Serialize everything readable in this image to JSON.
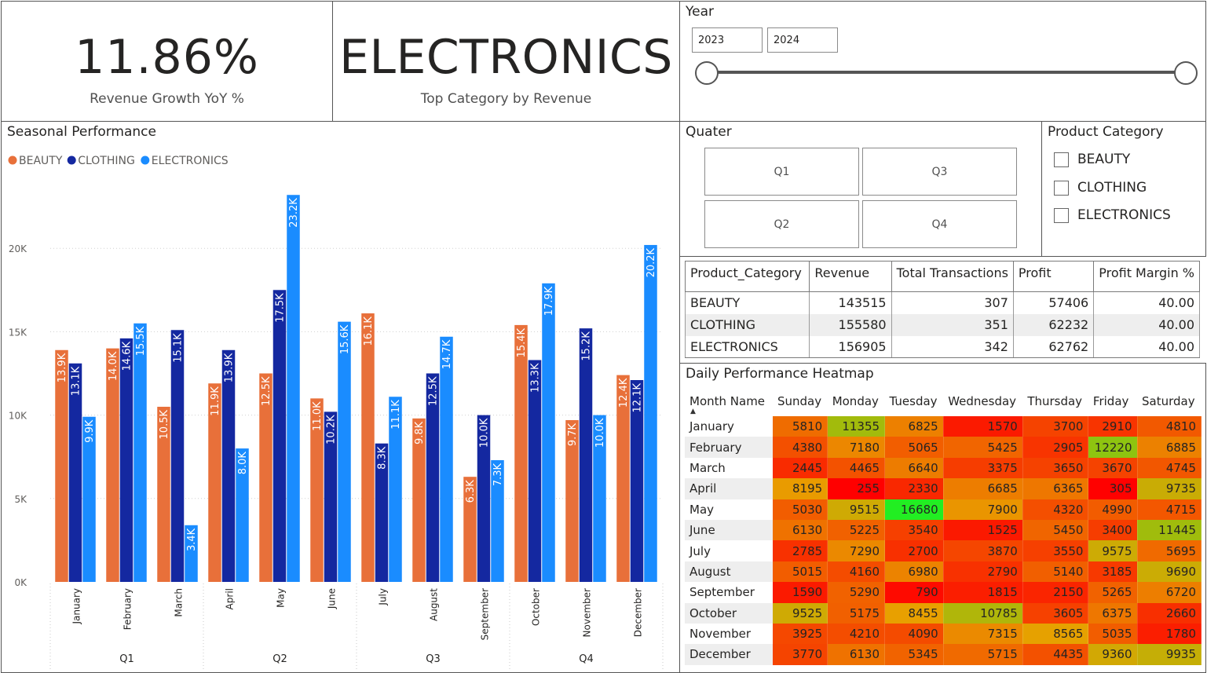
{
  "kpi_growth": {
    "value": "11.86%",
    "label": "Revenue Growth YoY %"
  },
  "kpi_top_category": {
    "value": "ELECTRONICS",
    "label": "Top Category by Revenue"
  },
  "year_slicer": {
    "title": "Year",
    "start": "2023",
    "end": "2024"
  },
  "quarter_slicer": {
    "title": "Quater",
    "options": [
      "Q1",
      "Q3",
      "Q2",
      "Q4"
    ]
  },
  "category_slicer": {
    "title": "Product Category",
    "options": [
      "BEAUTY",
      "CLOTHING",
      "ELECTRONICS"
    ]
  },
  "summary_table": {
    "columns": [
      "Product_Category",
      "Revenue",
      "Total Transactions",
      "Profit",
      "Profit Margin %"
    ],
    "rows": [
      [
        "BEAUTY",
        "143515",
        "307",
        "57406",
        "40.00"
      ],
      [
        "CLOTHING",
        "155580",
        "351",
        "62232",
        "40.00"
      ],
      [
        "ELECTRONICS",
        "156905",
        "342",
        "62762",
        "40.00"
      ]
    ]
  },
  "heatmap": {
    "title": "Daily Performance Heatmap",
    "columns": [
      "Month Name",
      "Sunday",
      "Monday",
      "Tuesday",
      "Wednesday",
      "Thursday",
      "Friday",
      "Saturday"
    ],
    "rows": [
      {
        "month": "January",
        "values": [
          5810,
          11355,
          6825,
          1570,
          3700,
          2910,
          4810
        ]
      },
      {
        "month": "February",
        "values": [
          4380,
          7180,
          5065,
          5425,
          2905,
          12220,
          6885
        ]
      },
      {
        "month": "March",
        "values": [
          2445,
          4465,
          6640,
          3375,
          3650,
          3670,
          4745
        ]
      },
      {
        "month": "April",
        "values": [
          8195,
          255,
          2330,
          6685,
          6365,
          305,
          9735
        ]
      },
      {
        "month": "May",
        "values": [
          5030,
          9515,
          16680,
          7900,
          4320,
          4990,
          4715
        ]
      },
      {
        "month": "June",
        "values": [
          6130,
          5225,
          3540,
          1525,
          5450,
          3400,
          11445
        ]
      },
      {
        "month": "July",
        "values": [
          2785,
          7290,
          2700,
          3870,
          3550,
          9575,
          5695
        ]
      },
      {
        "month": "August",
        "values": [
          5015,
          4160,
          6980,
          2790,
          5140,
          3185,
          9690
        ]
      },
      {
        "month": "September",
        "values": [
          1590,
          5290,
          790,
          1815,
          2150,
          5265,
          6720
        ]
      },
      {
        "month": "October",
        "values": [
          9525,
          5175,
          8455,
          10785,
          3605,
          6375,
          2660
        ]
      },
      {
        "month": "November",
        "values": [
          3925,
          4210,
          4090,
          7315,
          8565,
          5035,
          1780
        ]
      },
      {
        "month": "December",
        "values": [
          3770,
          6130,
          5345,
          5715,
          4435,
          9360,
          9935
        ]
      }
    ],
    "color_scale": {
      "low": "#ff0000",
      "mid": "#e8a000",
      "high": "#22ee22"
    }
  },
  "chart_data": {
    "type": "bar",
    "title": "Seasonal Performance",
    "categories": [
      "January",
      "February",
      "March",
      "April",
      "May",
      "June",
      "July",
      "August",
      "September",
      "October",
      "November",
      "December"
    ],
    "quarters": [
      "Q1",
      "Q2",
      "Q3",
      "Q4"
    ],
    "series": [
      {
        "name": "BEAUTY",
        "color": "#e8703a",
        "values": [
          13.9,
          14.0,
          10.5,
          11.9,
          12.5,
          11.0,
          16.1,
          9.8,
          6.3,
          15.4,
          9.7,
          12.4
        ],
        "labels": [
          "13.9K",
          "14.0K",
          "10.5K",
          "11.9K",
          "12.5K",
          "11.0K",
          "16.1K",
          "9.8K",
          "6.3K",
          "15.4K",
          "9.7K",
          "12.4K"
        ]
      },
      {
        "name": "CLOTHING",
        "color": "#1428a0",
        "values": [
          13.1,
          14.6,
          15.1,
          13.9,
          17.5,
          10.2,
          8.3,
          12.5,
          10.0,
          13.3,
          15.2,
          12.1
        ],
        "labels": [
          "13.1K",
          "14.6K",
          "15.1K",
          "13.9K",
          "17.5K",
          "10.2K",
          "8.3K",
          "12.5K",
          "10.0K",
          "13.3K",
          "15.2K",
          "12.1K"
        ]
      },
      {
        "name": "ELECTRONICS",
        "color": "#1a8cff",
        "values": [
          9.9,
          15.5,
          3.4,
          8.0,
          23.2,
          15.6,
          11.1,
          14.7,
          7.3,
          17.9,
          10.0,
          20.2
        ],
        "labels": [
          "9.9K",
          "15.5K",
          "3.4K",
          "8.0K",
          "23.2K",
          "15.6K",
          "11.1K",
          "14.7K",
          "7.3K",
          "17.9K",
          "10.0K",
          "20.2K"
        ]
      }
    ],
    "y_unit": "K",
    "yticks": [
      "0K",
      "5K",
      "10K",
      "15K",
      "20K"
    ],
    "ylim": [
      0,
      25
    ],
    "grid": true,
    "legend": "top-left"
  }
}
